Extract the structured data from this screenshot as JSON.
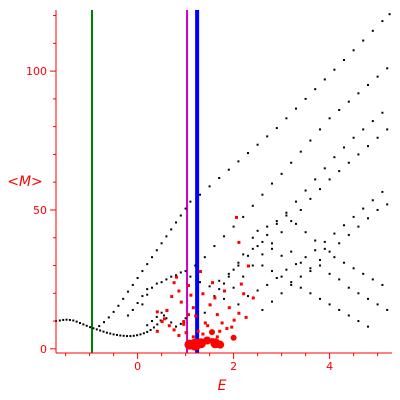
{
  "chart_data": {
    "type": "scatter",
    "xlabel": "E",
    "ylabel": "<M>",
    "xlim": [
      -1.7,
      5.3
    ],
    "ylim": [
      -1.5,
      122
    ],
    "x_ticks": [
      0,
      2,
      4
    ],
    "y_ticks": [
      0,
      50,
      100
    ],
    "grid": false,
    "axis_color": "#ff0000",
    "vertical_lines": [
      {
        "x": -0.95,
        "color": "#008000"
      },
      {
        "x": 1.03,
        "color": "#cc00cc"
      },
      {
        "x": 1.24,
        "color": "#0000ff"
      }
    ],
    "series": [
      {
        "color": "#000000",
        "points": [
          [
            -1.7,
            10.0
          ],
          [
            -1.62,
            10.2
          ],
          [
            -1.55,
            10.4
          ],
          [
            -1.48,
            10.5
          ],
          [
            -1.41,
            10.4
          ],
          [
            -1.34,
            10.2
          ],
          [
            -1.27,
            9.8
          ],
          [
            -1.2,
            9.3
          ],
          [
            -1.13,
            8.8
          ],
          [
            -1.06,
            8.3
          ],
          [
            -0.99,
            7.8
          ],
          [
            -0.92,
            7.4
          ],
          [
            -0.85,
            7.0
          ],
          [
            -0.78,
            6.6
          ],
          [
            -0.71,
            6.2
          ],
          [
            -0.64,
            5.8
          ],
          [
            -0.57,
            5.5
          ],
          [
            -0.5,
            5.2
          ],
          [
            -0.43,
            5.0
          ],
          [
            -0.36,
            4.8
          ],
          [
            -0.29,
            4.7
          ],
          [
            -0.22,
            4.6
          ],
          [
            -0.15,
            4.6
          ],
          [
            -0.08,
            4.7
          ],
          [
            -0.01,
            4.9
          ],
          [
            0.06,
            5.2
          ],
          [
            0.13,
            5.6
          ],
          [
            0.2,
            6.1
          ],
          [
            0.27,
            6.8
          ],
          [
            0.34,
            7.7
          ],
          [
            0.41,
            8.8
          ],
          [
            0.48,
            10.2
          ],
          [
            0.55,
            12.0
          ],
          [
            0.62,
            14.0
          ],
          [
            -0.8,
            8.2
          ],
          [
            -0.7,
            9.6
          ],
          [
            -0.6,
            11.3
          ],
          [
            -0.5,
            13.3
          ],
          [
            -0.4,
            15.5
          ],
          [
            -0.3,
            18.0
          ],
          [
            -0.2,
            20.6
          ],
          [
            -0.1,
            23.0
          ],
          [
            0.0,
            25.5
          ],
          [
            0.1,
            28.0
          ],
          [
            0.2,
            30.5
          ],
          [
            0.3,
            33.0
          ],
          [
            0.4,
            35.5
          ],
          [
            0.5,
            38.0
          ],
          [
            0.6,
            40.5
          ],
          [
            0.7,
            43.0
          ],
          [
            0.8,
            45.5
          ],
          [
            0.9,
            48.0
          ],
          [
            1.0,
            50.5
          ],
          [
            1.1,
            53.0
          ],
          [
            1.3,
            55.5
          ],
          [
            1.5,
            58.5
          ],
          [
            1.7,
            61.5
          ],
          [
            1.9,
            64.5
          ],
          [
            2.1,
            67.5
          ],
          [
            2.3,
            70.5
          ],
          [
            2.5,
            73.5
          ],
          [
            2.7,
            76.5
          ],
          [
            2.9,
            79.5
          ],
          [
            3.1,
            83.0
          ],
          [
            3.3,
            86.5
          ],
          [
            3.5,
            90.0
          ],
          [
            3.7,
            93.5
          ],
          [
            3.9,
            97.0
          ],
          [
            4.1,
            100.5
          ],
          [
            4.3,
            104.0
          ],
          [
            4.5,
            107.5
          ],
          [
            4.7,
            111.0
          ],
          [
            4.9,
            114.5
          ],
          [
            5.1,
            118.0
          ],
          [
            5.25,
            120.5
          ],
          [
            -0.2,
            12.0
          ],
          [
            -0.1,
            14.0
          ],
          [
            0.0,
            16.5
          ],
          [
            0.1,
            19.0
          ],
          [
            0.2,
            21.5
          ],
          [
            0.4,
            23.5
          ],
          [
            0.6,
            25.0
          ],
          [
            0.8,
            26.5
          ],
          [
            1.0,
            28.0
          ],
          [
            1.2,
            30.0
          ],
          [
            1.4,
            33.0
          ],
          [
            1.6,
            37.0
          ],
          [
            1.8,
            40.5
          ],
          [
            2.0,
            44.0
          ],
          [
            2.2,
            47.5
          ],
          [
            2.4,
            51.5
          ],
          [
            2.6,
            55.5
          ],
          [
            2.8,
            59.5
          ],
          [
            3.0,
            63.0
          ],
          [
            3.2,
            67.0
          ],
          [
            3.4,
            71.0
          ],
          [
            3.6,
            75.0
          ],
          [
            3.8,
            79.0
          ],
          [
            4.0,
            83.0
          ],
          [
            4.2,
            86.0
          ],
          [
            4.4,
            89.0
          ],
          [
            4.6,
            92.0
          ],
          [
            4.8,
            95.0
          ],
          [
            5.0,
            98.0
          ],
          [
            5.2,
            101.0
          ],
          [
            0.1,
            16.0
          ],
          [
            0.2,
            19.5
          ],
          [
            0.3,
            22.0
          ],
          [
            0.5,
            24.0
          ],
          [
            0.7,
            26.0
          ],
          [
            0.9,
            27.5
          ],
          [
            1.1,
            26.0
          ],
          [
            1.3,
            24.0
          ],
          [
            1.5,
            22.5
          ],
          [
            1.7,
            24.5
          ],
          [
            1.9,
            27.0
          ],
          [
            2.1,
            30.0
          ],
          [
            2.3,
            33.5
          ],
          [
            2.5,
            37.0
          ],
          [
            2.7,
            41.0
          ],
          [
            2.9,
            45.0
          ],
          [
            3.1,
            49.0
          ],
          [
            3.3,
            53.0
          ],
          [
            3.5,
            57.0
          ],
          [
            3.7,
            61.0
          ],
          [
            3.9,
            65.0
          ],
          [
            4.1,
            69.0
          ],
          [
            4.3,
            72.5
          ],
          [
            4.5,
            76.0
          ],
          [
            4.7,
            79.0
          ],
          [
            4.9,
            82.0
          ],
          [
            5.1,
            85.0
          ],
          [
            1.8,
            18.0
          ],
          [
            2.0,
            22.0
          ],
          [
            2.2,
            26.0
          ],
          [
            2.4,
            30.0
          ],
          [
            2.6,
            34.0
          ],
          [
            2.8,
            38.0
          ],
          [
            3.0,
            42.0
          ],
          [
            3.2,
            46.0
          ],
          [
            3.4,
            50.0
          ],
          [
            3.6,
            54.0
          ],
          [
            3.8,
            57.5
          ],
          [
            4.0,
            61.0
          ],
          [
            4.2,
            64.0
          ],
          [
            4.4,
            67.0
          ],
          [
            4.6,
            70.0
          ],
          [
            4.8,
            73.0
          ],
          [
            5.0,
            76.0
          ],
          [
            5.2,
            79.0
          ],
          [
            2.6,
            14.0
          ],
          [
            2.8,
            17.0
          ],
          [
            3.0,
            20.0
          ],
          [
            3.2,
            23.0
          ],
          [
            3.4,
            26.0
          ],
          [
            3.6,
            29.0
          ],
          [
            3.8,
            32.0
          ],
          [
            4.0,
            35.0
          ],
          [
            4.2,
            38.0
          ],
          [
            4.4,
            41.0
          ],
          [
            4.6,
            44.0
          ],
          [
            4.8,
            47.0
          ],
          [
            5.0,
            50.0
          ],
          [
            5.2,
            52.0
          ],
          [
            2.4,
            40.0
          ],
          [
            2.5,
            42.5
          ],
          [
            2.6,
            38.5
          ],
          [
            2.7,
            44.0
          ],
          [
            2.8,
            36.0
          ],
          [
            2.9,
            46.0
          ],
          [
            3.0,
            33.5
          ],
          [
            3.1,
            48.0
          ],
          [
            3.2,
            35.0
          ],
          [
            3.3,
            45.0
          ],
          [
            3.4,
            31.0
          ],
          [
            3.5,
            42.0
          ],
          [
            3.6,
            28.0
          ],
          [
            3.7,
            39.0
          ],
          [
            3.8,
            30.0
          ],
          [
            3.9,
            36.0
          ],
          [
            4.0,
            27.0
          ],
          [
            4.1,
            33.0
          ],
          [
            4.2,
            25.0
          ],
          [
            4.3,
            31.0
          ],
          [
            4.4,
            22.0
          ],
          [
            4.5,
            29.0
          ],
          [
            4.6,
            20.0
          ],
          [
            4.7,
            27.0
          ],
          [
            4.8,
            18.0
          ],
          [
            4.9,
            25.0
          ],
          [
            5.0,
            16.0
          ],
          [
            5.1,
            23.0
          ],
          [
            5.2,
            14.0
          ],
          [
            2.2,
            34.0
          ],
          [
            2.4,
            36.0
          ],
          [
            2.6,
            30.0
          ],
          [
            2.8,
            28.0
          ],
          [
            3.0,
            26.0
          ],
          [
            3.2,
            24.0
          ],
          [
            3.4,
            22.0
          ],
          [
            3.6,
            20.0
          ],
          [
            3.8,
            18.0
          ],
          [
            4.0,
            16.0
          ],
          [
            4.2,
            14.0
          ],
          [
            4.4,
            12.0
          ],
          [
            4.6,
            10.0
          ],
          [
            4.8,
            8.0
          ],
          [
            2.1,
            16.0
          ],
          [
            2.3,
            19.0
          ],
          [
            2.5,
            21.0
          ],
          [
            2.7,
            23.0
          ],
          [
            2.9,
            25.5
          ],
          [
            3.1,
            28.5
          ],
          [
            3.3,
            30.5
          ],
          [
            3.5,
            33.0
          ],
          [
            3.7,
            35.5
          ],
          [
            3.9,
            38.5
          ],
          [
            4.1,
            41.5
          ],
          [
            4.3,
            44.5
          ],
          [
            4.5,
            47.5
          ],
          [
            4.7,
            50.5
          ],
          [
            4.9,
            53.5
          ],
          [
            5.1,
            56.5
          ],
          [
            0.2,
            8.5
          ],
          [
            0.3,
            10.0
          ],
          [
            0.4,
            11.5
          ],
          [
            0.5,
            13.0
          ],
          [
            0.6,
            11.0
          ],
          [
            0.7,
            9.5
          ],
          [
            0.8,
            8.0
          ],
          [
            0.9,
            9.0
          ],
          [
            1.0,
            11.0
          ],
          [
            1.4,
            13.0
          ],
          [
            1.5,
            16.0
          ],
          [
            1.6,
            19.0
          ],
          [
            1.7,
            21.5
          ],
          [
            1.8,
            23.5
          ],
          [
            1.9,
            26.0
          ],
          [
            2.0,
            28.5
          ],
          [
            2.1,
            31.0
          ]
        ]
      },
      {
        "color": "#ff0000",
        "points": [
          [
            0.4,
            6.5
          ],
          [
            0.5,
            10.0
          ],
          [
            0.6,
            14.0
          ],
          [
            0.7,
            19.0
          ],
          [
            0.75,
            24.0
          ],
          [
            0.8,
            26.0
          ],
          [
            0.85,
            21.0
          ],
          [
            0.9,
            17.0
          ],
          [
            0.95,
            10.0
          ],
          [
            1.0,
            6.0
          ],
          [
            1.05,
            23.0
          ],
          [
            1.1,
            19.5
          ],
          [
            1.15,
            15.0
          ],
          [
            1.2,
            12.0
          ],
          [
            1.3,
            28.0
          ],
          [
            1.35,
            20.0
          ],
          [
            1.4,
            9.5
          ],
          [
            1.5,
            16.0
          ],
          [
            1.55,
            24.0
          ],
          [
            1.6,
            18.5
          ],
          [
            1.65,
            12.5
          ],
          [
            1.7,
            6.5
          ],
          [
            1.8,
            21.0
          ],
          [
            1.9,
            15.0
          ],
          [
            1.95,
            8.0
          ],
          [
            2.05,
            47.5
          ],
          [
            2.1,
            38.5
          ],
          [
            2.15,
            23.5
          ],
          [
            2.2,
            20.0
          ],
          [
            2.25,
            11.5
          ],
          [
            2.3,
            30.0
          ],
          [
            2.4,
            18.5
          ],
          [
            0.4,
            13.5
          ],
          [
            0.55,
            11.0
          ],
          [
            0.65,
            8.5
          ],
          [
            0.75,
            7.0
          ],
          [
            0.85,
            5.0
          ],
          [
            0.95,
            9.0
          ],
          [
            1.05,
            12.5
          ],
          [
            1.15,
            4.5
          ],
          [
            1.25,
            6.5
          ],
          [
            1.35,
            5.5
          ],
          [
            1.45,
            8.5
          ],
          [
            1.55,
            3.5
          ],
          [
            1.65,
            4.5
          ],
          [
            1.75,
            9.5
          ],
          [
            1.85,
            7.5
          ],
          [
            2.0,
            10.5
          ],
          [
            2.1,
            13.0
          ]
        ]
      }
    ]
  }
}
